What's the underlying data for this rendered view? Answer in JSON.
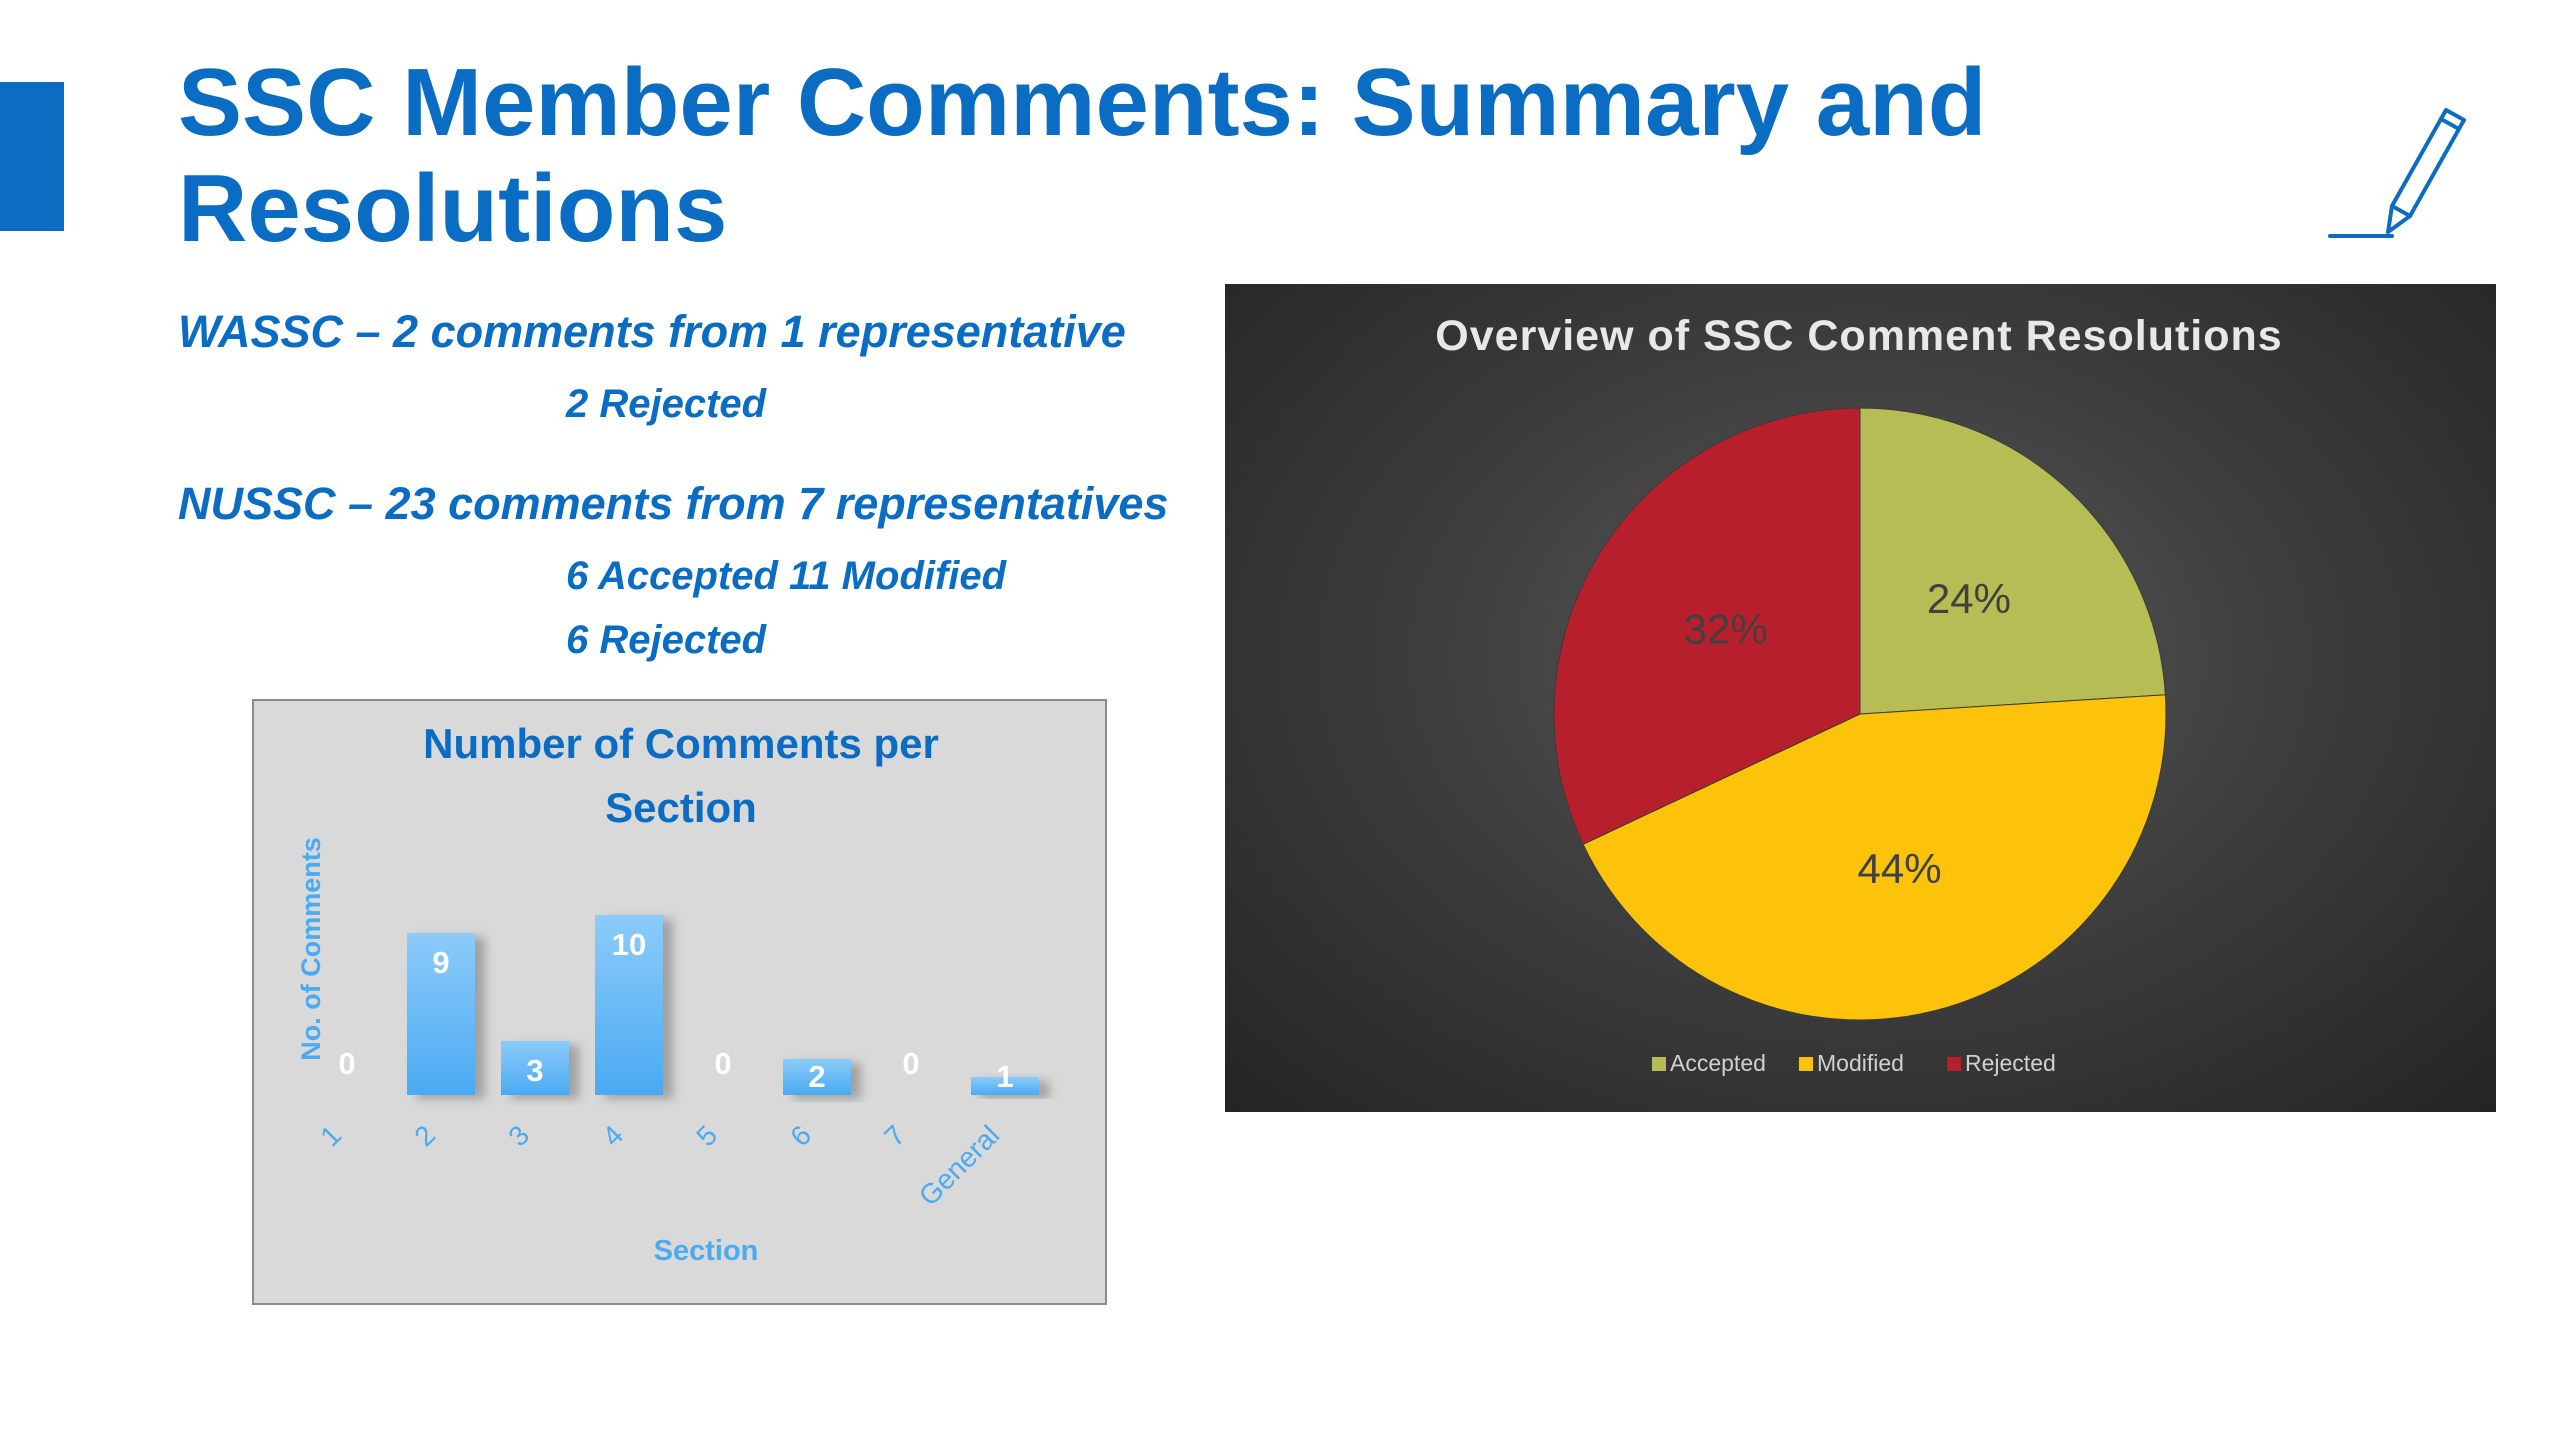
{
  "slide": {
    "title": "SSC Member Comments: Summary and Resolutions",
    "accent_color": "#0b6cc4",
    "text_color": "#0a6cc2",
    "icon": "pen-signature-icon"
  },
  "summary": {
    "wassc": {
      "heading": "WASSC – 2 comments from 1 representative",
      "detail": "2 Rejected"
    },
    "nussc": {
      "heading": "NUSSC – 23 comments from 7 representatives",
      "detail_1": "6 Accepted 11 Modified",
      "detail_2": "6 Rejected"
    }
  },
  "chart_data": [
    {
      "type": "bar",
      "title": "Number of Comments per Section",
      "title_lines": [
        "Number of Comments per",
        "Section"
      ],
      "xlabel": "Section",
      "ylabel": "No. of Comments",
      "categories": [
        "1",
        "2",
        "3",
        "4",
        "5",
        "6",
        "7",
        "General"
      ],
      "values": [
        0,
        9,
        3,
        10,
        0,
        2,
        0,
        1
      ],
      "ylim": [
        0,
        12
      ],
      "grid": false,
      "bar_color": "#5ab4f5",
      "background": "#d9d9d9"
    },
    {
      "type": "pie",
      "title": "Overview of SSC Comment Resolutions",
      "labels": [
        "Accepted",
        "Modified",
        "Rejected"
      ],
      "values": [
        24,
        44,
        32
      ],
      "value_labels": [
        "24%",
        "44%",
        "32%"
      ],
      "colors": [
        "#b5bd54",
        "#fcc30a",
        "#b71f2c"
      ],
      "legend": "bottom",
      "background": "#3f3f3f"
    }
  ]
}
